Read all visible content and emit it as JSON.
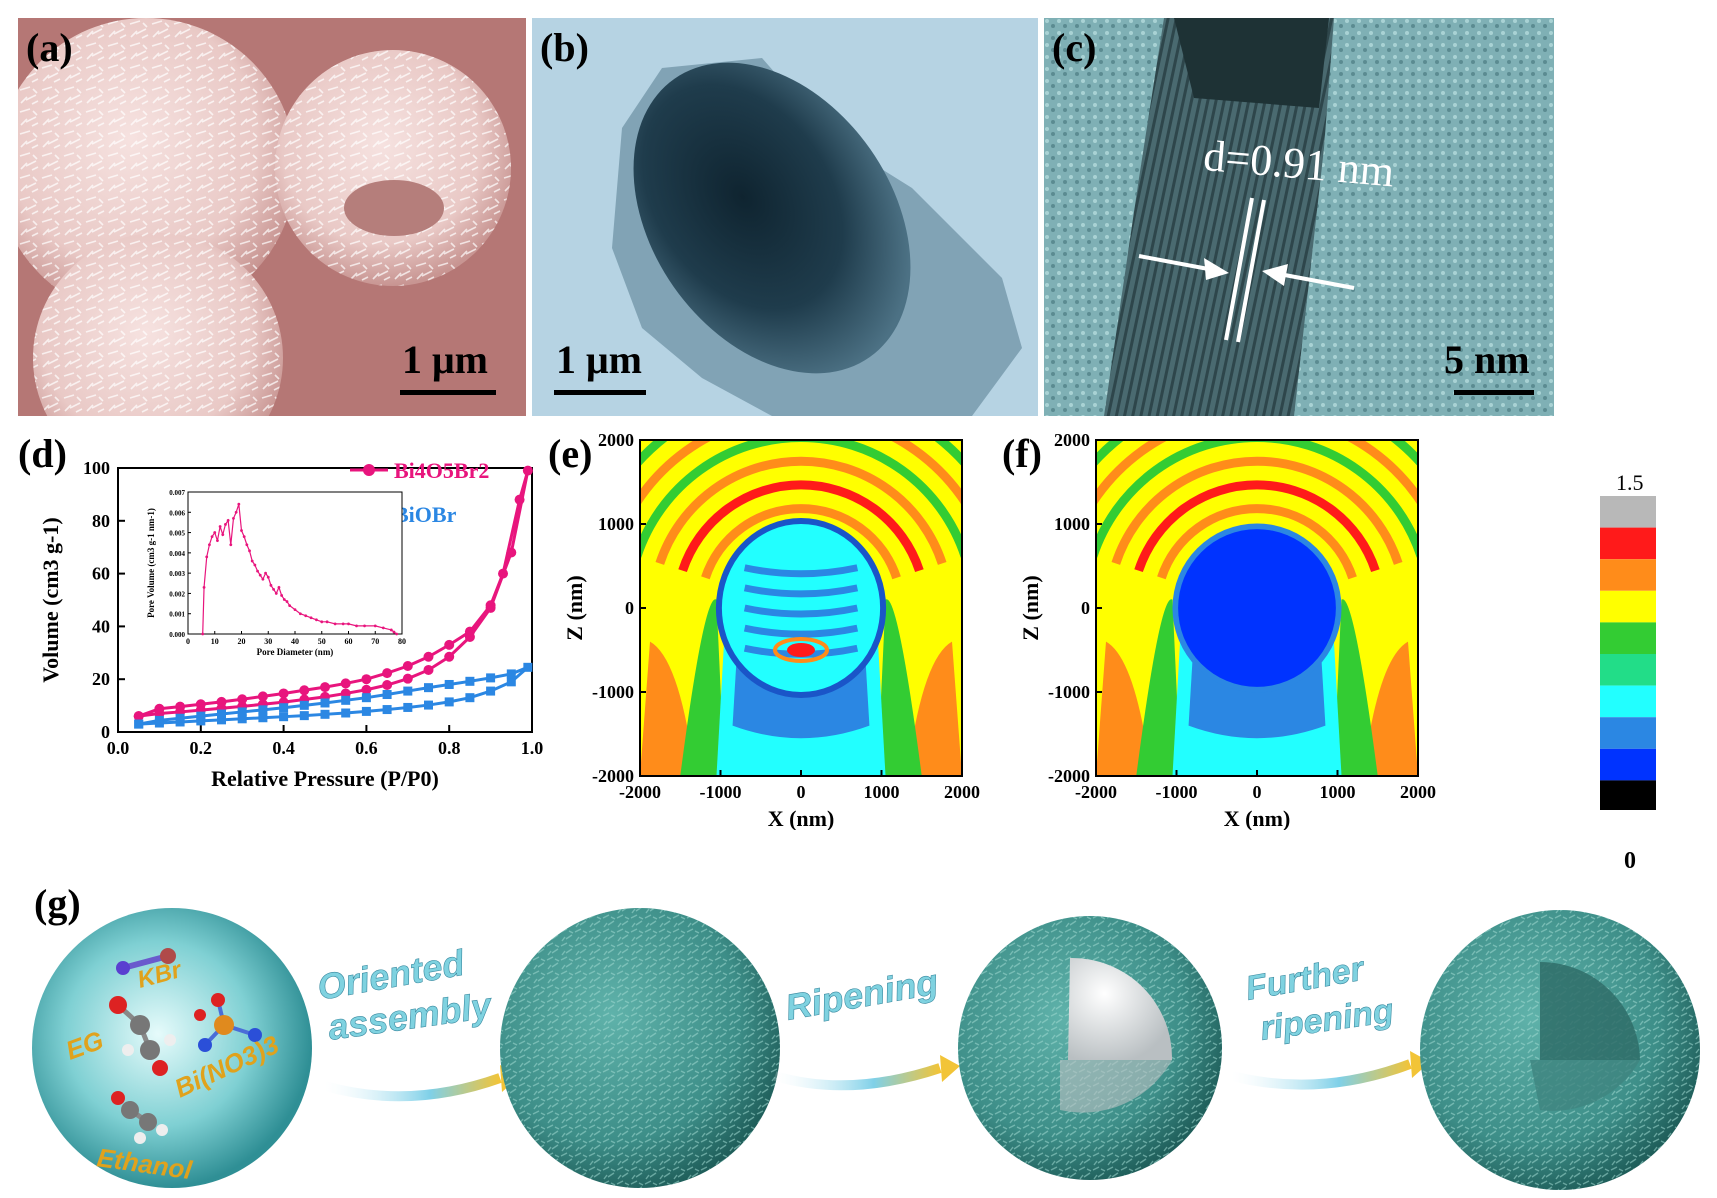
{
  "panels": {
    "a": {
      "label": "(a)",
      "scale_bar": "1 μm"
    },
    "b": {
      "label": "(b)",
      "scale_bar": "1 μm"
    },
    "c": {
      "label": "(c)",
      "spacing": "d=0.91 nm",
      "scale_bar": "5 nm"
    },
    "d": {
      "label": "(d)"
    },
    "e": {
      "label": "(e)"
    },
    "f": {
      "label": "(f)"
    },
    "g": {
      "label": "(g)"
    }
  },
  "chart_data": [
    {
      "type": "line",
      "panel": "d",
      "xlabel": "Relative Pressure (P/P0)",
      "ylabel": "Volume (cm3 g-1)",
      "xlim": [
        0.0,
        1.0
      ],
      "ylim": [
        0,
        100
      ],
      "xticks": [
        "0.0",
        "0.2",
        "0.4",
        "0.6",
        "0.8",
        "1.0"
      ],
      "yticks": [
        "0",
        "20",
        "40",
        "60",
        "80",
        "100"
      ],
      "legend_position": "top-right",
      "series": [
        {
          "name": "Bi4O5Br2",
          "color": "#e8157d",
          "marker": "circle",
          "x": [
            0.05,
            0.1,
            0.15,
            0.2,
            0.25,
            0.3,
            0.35,
            0.4,
            0.45,
            0.5,
            0.55,
            0.6,
            0.65,
            0.7,
            0.75,
            0.8,
            0.85,
            0.9,
            0.95,
            0.99,
            0.97,
            0.93,
            0.9,
            0.85,
            0.8,
            0.75,
            0.7,
            0.65,
            0.6,
            0.55,
            0.5,
            0.45,
            0.4,
            0.35,
            0.3,
            0.25,
            0.2,
            0.15,
            0.1,
            0.05
          ],
          "y": [
            6,
            7,
            7.6,
            8.3,
            9,
            9.7,
            10.5,
            11.3,
            12.3,
            13.3,
            14.6,
            16,
            17.8,
            20.2,
            23.5,
            28.5,
            36,
            47,
            68,
            99,
            88,
            60,
            48,
            38,
            33,
            28.5,
            25,
            22.3,
            20,
            18.4,
            17,
            15.8,
            14.6,
            13.5,
            12.4,
            11.4,
            10.5,
            9.6,
            8.8,
            6
          ]
        },
        {
          "name": "BiOBr",
          "color": "#2b87e3",
          "marker": "square",
          "x": [
            0.05,
            0.1,
            0.15,
            0.2,
            0.25,
            0.3,
            0.35,
            0.4,
            0.45,
            0.5,
            0.55,
            0.6,
            0.65,
            0.7,
            0.75,
            0.8,
            0.85,
            0.9,
            0.95,
            0.99,
            0.95,
            0.9,
            0.85,
            0.8,
            0.75,
            0.7,
            0.65,
            0.6,
            0.55,
            0.5,
            0.45,
            0.4,
            0.35,
            0.3,
            0.25,
            0.2,
            0.15,
            0.1,
            0.05
          ],
          "y": [
            3,
            3.4,
            3.8,
            4.2,
            4.6,
            5,
            5.4,
            5.8,
            6.2,
            6.7,
            7.2,
            7.8,
            8.5,
            9.3,
            10.2,
            11.4,
            13,
            15.5,
            19,
            24.5,
            22,
            20.5,
            19.2,
            18,
            16.8,
            15.5,
            14.2,
            13,
            12,
            11,
            10.1,
            9.2,
            8.4,
            7.6,
            6.8,
            6,
            5.2,
            4.4,
            3
          ]
        }
      ]
    },
    {
      "type": "line",
      "panel": "d-inset",
      "xlabel": "Pore Diameter (nm)",
      "ylabel": "Pore Volume (cm3 g-1 nm-1)",
      "xlim": [
        0,
        80
      ],
      "ylim": [
        0,
        0.007
      ],
      "xticks": [
        "0",
        "10",
        "20",
        "30",
        "40",
        "50",
        "60",
        "70",
        "80"
      ],
      "yticks": [
        "0.000",
        "0.001",
        "0.002",
        "0.003",
        "0.004",
        "0.005",
        "0.006",
        "0.007"
      ],
      "series": [
        {
          "name": "",
          "color": "#e8157d",
          "x": [
            5.5,
            6,
            7,
            8,
            9,
            10,
            11,
            12,
            13,
            14,
            15,
            16,
            17,
            18,
            19,
            20,
            21,
            22,
            23,
            24,
            25,
            26,
            27,
            28,
            29,
            30,
            31,
            32,
            33,
            34,
            35,
            36,
            37,
            38,
            40,
            42,
            44,
            46,
            48,
            50,
            52,
            55,
            58,
            60,
            63,
            66,
            70,
            73,
            76,
            77,
            78
          ],
          "y": [
            0,
            0.0023,
            0.0038,
            0.0044,
            0.0048,
            0.005,
            0.0046,
            0.0053,
            0.0049,
            0.0054,
            0.0056,
            0.0044,
            0.0057,
            0.006,
            0.0064,
            0.0051,
            0.0048,
            0.0044,
            0.0041,
            0.0036,
            0.0034,
            0.0031,
            0.0029,
            0.0027,
            0.003,
            0.0028,
            0.0024,
            0.0022,
            0.002,
            0.0023,
            0.0019,
            0.0017,
            0.0016,
            0.0014,
            0.0012,
            0.001,
            0.0009,
            0.0008,
            0.0007,
            0.0006,
            0.0006,
            0.0005,
            0.0005,
            0.0005,
            0.0004,
            0.0004,
            0.0004,
            0.0003,
            0.0002,
            0.0001,
            0.0
          ]
        }
      ]
    },
    {
      "type": "heatmap",
      "panel": "e",
      "xlabel": "X (nm)",
      "ylabel": "Z (nm)",
      "xlim": [
        -2000,
        2000
      ],
      "ylim": [
        -2000,
        2000
      ],
      "xticks": [
        "-2000",
        "-1000",
        "0",
        "1000",
        "2000"
      ],
      "yticks": [
        "2000",
        "1000",
        "0",
        "-1000",
        "-2000"
      ]
    },
    {
      "type": "heatmap",
      "panel": "f",
      "xlabel": "X (nm)",
      "ylabel": "Z (nm)",
      "xlim": [
        -2000,
        2000
      ],
      "ylim": [
        -2000,
        2000
      ],
      "xticks": [
        "-2000",
        "-1000",
        "0",
        "1000",
        "2000"
      ],
      "yticks": [
        "2000",
        "1000",
        "0",
        "-1000",
        "-2000"
      ],
      "colorbar": {
        "max": "1.5",
        "min": "0",
        "colors": [
          "#b8b8b8",
          "#ff1a1a",
          "#ff8c1a",
          "#ffff00",
          "#33cc33",
          "#22dd88",
          "#22ffff",
          "#2b87e3",
          "#0033ff",
          "#000000"
        ]
      }
    }
  ],
  "scheme": {
    "labels": {
      "kbr": "KBr",
      "eg": "EG",
      "bino3": "Bi(NO3)3",
      "ethanol": "Ethanol",
      "step1_line1": "Oriented",
      "step1_line2": "assembly",
      "step2": "Ripening",
      "step3_line1": "Further",
      "step3_line2": "ripening"
    }
  }
}
